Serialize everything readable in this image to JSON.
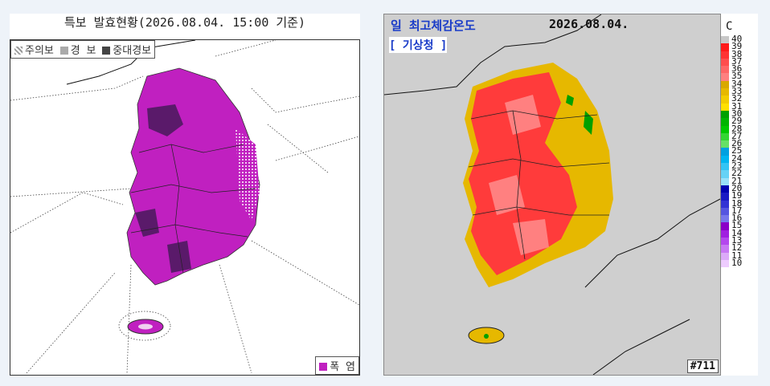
{
  "left": {
    "title": "특보 발효현황(2026.08.04. 15:00 기준)",
    "legend": [
      {
        "label": "주의보",
        "pattern": "dots",
        "color": "#bbbbbb"
      },
      {
        "label": "경 보",
        "color": "#aaaaaa"
      },
      {
        "label": "중대경보",
        "color": "#444444"
      }
    ],
    "hazard_legend": {
      "label": "폭 염",
      "color": "#c020c0"
    }
  },
  "right": {
    "title": "일 최고체감온도",
    "date": "2026.08.04.",
    "source": "[ 기상청 ]",
    "unit": "C",
    "code": "#711",
    "scale": [
      {
        "value": "40",
        "color": "#c8c8c8"
      },
      {
        "value": "39",
        "color": "#ff1a1a"
      },
      {
        "value": "38",
        "color": "#ff3333"
      },
      {
        "value": "37",
        "color": "#ff4d4d"
      },
      {
        "value": "36",
        "color": "#ff6666"
      },
      {
        "value": "35",
        "color": "#ff8080"
      },
      {
        "value": "34",
        "color": "#d9a800"
      },
      {
        "value": "33",
        "color": "#e6b800"
      },
      {
        "value": "32",
        "color": "#f2cc00"
      },
      {
        "value": "31",
        "color": "#ffe000"
      },
      {
        "value": "30",
        "color": "#00a000"
      },
      {
        "value": "29",
        "color": "#00b400"
      },
      {
        "value": "28",
        "color": "#00c800"
      },
      {
        "value": "27",
        "color": "#33d633"
      },
      {
        "value": "26",
        "color": "#66e066"
      },
      {
        "value": "25",
        "color": "#00a0e0"
      },
      {
        "value": "24",
        "color": "#00b4f0"
      },
      {
        "value": "23",
        "color": "#33c4f4"
      },
      {
        "value": "22",
        "color": "#66d2f6"
      },
      {
        "value": "21",
        "color": "#99e0f9"
      },
      {
        "value": "20",
        "color": "#0000b0"
      },
      {
        "value": "19",
        "color": "#1a1ac4"
      },
      {
        "value": "18",
        "color": "#3333d4"
      },
      {
        "value": "17",
        "color": "#5555e0"
      },
      {
        "value": "16",
        "color": "#7777ec"
      },
      {
        "value": "15",
        "color": "#8a00c8"
      },
      {
        "value": "14",
        "color": "#a020e0"
      },
      {
        "value": "13",
        "color": "#b447ee"
      },
      {
        "value": "12",
        "color": "#c878f4"
      },
      {
        "value": "11",
        "color": "#dcaaf9"
      },
      {
        "value": "10",
        "color": "#eeccff"
      }
    ]
  }
}
